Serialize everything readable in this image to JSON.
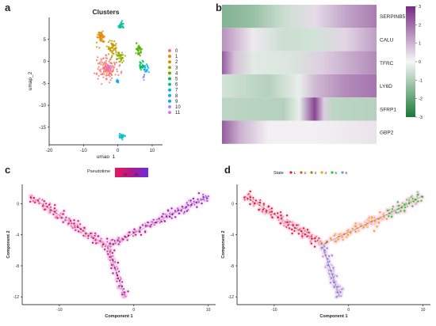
{
  "panel_letters": {
    "a": "a",
    "b": "b",
    "c": "c",
    "d": "d"
  },
  "chart_data": [
    {
      "panel": "a",
      "type": "scatter",
      "title": "Clusters",
      "xlabel": "umap_1",
      "ylabel": "umap_2",
      "xlim": [
        -20,
        13
      ],
      "ylim": [
        -19,
        10
      ],
      "xticks": [
        -20,
        -10,
        0,
        10
      ],
      "yticks": [
        5,
        0,
        -5,
        -10,
        -15
      ],
      "grid": false,
      "legend_position": "right",
      "series": [
        {
          "name": "0",
          "color": "#f8766d",
          "center": [
            -3,
            -1.5
          ],
          "spread": [
            2.4,
            2.2
          ],
          "count": 140
        },
        {
          "name": "1",
          "color": "#e38900",
          "center": [
            -5,
            5.5
          ],
          "spread": [
            1.0,
            1.3
          ],
          "count": 50
        },
        {
          "name": "2",
          "color": "#c49a00",
          "center": [
            -1.5,
            3
          ],
          "spread": [
            1.2,
            1.4
          ],
          "count": 50
        },
        {
          "name": "3",
          "color": "#99a800",
          "center": [
            0.5,
            1
          ],
          "spread": [
            1.0,
            1.0
          ],
          "count": 40
        },
        {
          "name": "4",
          "color": "#53b400",
          "center": [
            6,
            2.5
          ],
          "spread": [
            0.8,
            1.2
          ],
          "count": 40
        },
        {
          "name": "5",
          "color": "#00bc56",
          "center": [
            7,
            -1
          ],
          "spread": [
            0.6,
            0.8
          ],
          "count": 25
        },
        {
          "name": "6",
          "color": "#00c094",
          "center": [
            1,
            8
          ],
          "spread": [
            0.8,
            0.8
          ],
          "count": 25
        },
        {
          "name": "7",
          "color": "#00bfc4",
          "center": [
            1,
            -17
          ],
          "spread": [
            0.8,
            0.4
          ],
          "count": 25
        },
        {
          "name": "8",
          "color": "#00b6eb",
          "center": [
            8,
            -1.5
          ],
          "spread": [
            0.7,
            0.9
          ],
          "count": 20
        },
        {
          "name": "9",
          "color": "#06a4ff",
          "center": [
            0,
            -4.5
          ],
          "spread": [
            0.3,
            0.4
          ],
          "count": 12
        },
        {
          "name": "10",
          "color": "#a58aff",
          "center": [
            7.5,
            -3.5
          ],
          "spread": [
            0.4,
            0.4
          ],
          "count": 8
        },
        {
          "name": "11",
          "color": "#df70f8",
          "center": [
            -2.5,
            -1.5
          ],
          "spread": [
            0.5,
            0.5
          ],
          "count": 15
        }
      ]
    },
    {
      "panel": "b",
      "type": "heatmap",
      "rows": [
        "SERPINB5",
        "CALU",
        "TFRC",
        "LY6D",
        "SFRP1",
        "GBP2"
      ],
      "colorbar_ticks": [
        3,
        2,
        1,
        0,
        -1,
        -2,
        -3
      ],
      "colorbar_range": [
        -3,
        3
      ],
      "colors": {
        "high": "#762a83",
        "mid": "#f7f7f7",
        "low": "#1b7837"
      },
      "profiles": [
        [
          [
            0,
            -1.6
          ],
          [
            0.2,
            -1.3
          ],
          [
            0.4,
            -0.6
          ],
          [
            0.6,
            0.4
          ],
          [
            0.8,
            1.2
          ],
          [
            1,
            1.8
          ]
        ],
        [
          [
            0,
            1.5
          ],
          [
            0.2,
            0.2
          ],
          [
            0.4,
            -0.6
          ],
          [
            0.6,
            -0.5
          ],
          [
            0.8,
            0.5
          ],
          [
            1,
            1.3
          ]
        ],
        [
          [
            0,
            2.3
          ],
          [
            0.08,
            0.8
          ],
          [
            0.2,
            -0.3
          ],
          [
            0.45,
            -0.4
          ],
          [
            0.65,
            0.6
          ],
          [
            1,
            1.6
          ]
        ],
        [
          [
            0,
            -0.5
          ],
          [
            0.3,
            -0.9
          ],
          [
            0.5,
            -0.2
          ],
          [
            0.6,
            0.9
          ],
          [
            0.8,
            1.6
          ],
          [
            1,
            1.9
          ]
        ],
        [
          [
            0,
            -0.8
          ],
          [
            0.4,
            -0.9
          ],
          [
            0.5,
            -0.2
          ],
          [
            0.6,
            2.6
          ],
          [
            0.66,
            0.6
          ],
          [
            0.72,
            -0.8
          ],
          [
            1,
            -0.9
          ]
        ],
        [
          [
            0,
            2.3
          ],
          [
            0.12,
            1.0
          ],
          [
            0.3,
            0.1
          ],
          [
            0.6,
            0.1
          ],
          [
            1,
            0.3
          ]
        ]
      ]
    },
    {
      "panel": "c",
      "type": "scatter",
      "xlabel": "Component 1",
      "ylabel": "Component 2",
      "xlim": [
        -15,
        11
      ],
      "ylim": [
        -13,
        2.5
      ],
      "xticks": [
        -10,
        0,
        10
      ],
      "yticks": [
        0,
        -4,
        -8,
        -12
      ],
      "legend_title": "Pseudotime",
      "legend_ticks": [
        "10",
        "20"
      ],
      "color_scale": [
        "#e7195b",
        "#b01a8c",
        "#6a2ee0"
      ],
      "branches": [
        {
          "from": [
            -14,
            1
          ],
          "to": [
            -3.5,
            -5.5
          ],
          "t": [
            0,
            0.35
          ],
          "count": 150,
          "width": 0.9
        },
        {
          "from": [
            -3.5,
            -5.5
          ],
          "to": [
            -1.2,
            -12
          ],
          "t": [
            0.35,
            0.65
          ],
          "count": 90,
          "width": 0.7
        },
        {
          "from": [
            -3.5,
            -5.5
          ],
          "to": [
            10,
            1
          ],
          "t": [
            0.45,
            1.0
          ],
          "count": 170,
          "width": 0.8
        }
      ]
    },
    {
      "panel": "d",
      "type": "scatter",
      "xlabel": "Component 1",
      "ylabel": "Component 2",
      "xlim": [
        -15,
        11
      ],
      "ylim": [
        -13,
        2.5
      ],
      "xticks": [
        -10,
        0,
        10
      ],
      "yticks": [
        0,
        -4,
        -8,
        -12
      ],
      "legend_title": "State",
      "series": [
        {
          "name": "1",
          "color": "#e41a1c",
          "from": [
            -14,
            1
          ],
          "to": [
            -4,
            -5
          ],
          "count": 160,
          "width": 0.9
        },
        {
          "name": "2",
          "color": "#d95f02",
          "from": [
            -4,
            -5
          ],
          "to": [
            -3.3,
            -5.4
          ],
          "count": 10,
          "width": 0.3
        },
        {
          "name": "3",
          "color": "#a67c00",
          "from": [
            -3.5,
            -5.3
          ],
          "to": [
            -2.8,
            -4.9
          ],
          "count": 8,
          "width": 0.3
        },
        {
          "name": "4",
          "color": "#f0a30a",
          "from": [
            -2.5,
            -4.8
          ],
          "to": [
            6,
            -1
          ],
          "count": 110,
          "width": 0.8
        },
        {
          "name": "5",
          "color": "#22cc22",
          "from": [
            5,
            -1.5
          ],
          "to": [
            10,
            1
          ],
          "count": 90,
          "width": 0.8
        },
        {
          "name": "6",
          "color": "#6495ed",
          "from": [
            -3.5,
            -5.5
          ],
          "to": [
            -1.2,
            -12
          ],
          "count": 95,
          "width": 0.7
        }
      ]
    }
  ]
}
